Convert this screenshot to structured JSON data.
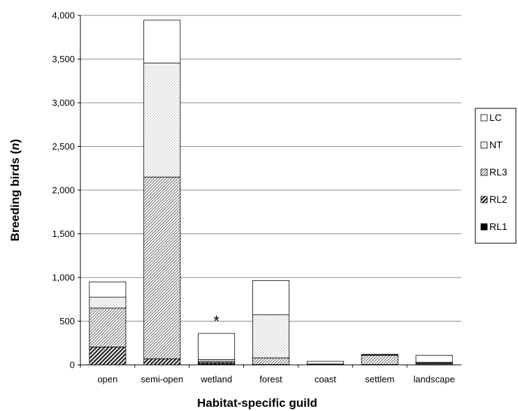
{
  "chart_data": {
    "type": "bar",
    "stacked": true,
    "title": "",
    "xlabel": "Habitat-specific guild",
    "ylabel_main": "Breeding birds (",
    "ylabel_italic": "n",
    "ylabel_end": ")",
    "ylim": [
      0,
      4000
    ],
    "yticks": [
      0,
      500,
      1000,
      1500,
      2000,
      2500,
      3000,
      3500,
      4000
    ],
    "ytick_labels": [
      "0",
      "500",
      "1,000",
      "1,500",
      "2,000",
      "2,500",
      "3,000",
      "3,500",
      "4,000"
    ],
    "categories": [
      "open",
      "semi-open",
      "wetland",
      "forest",
      "coast",
      "settlem",
      "landscape"
    ],
    "series": [
      {
        "name": "RL1",
        "pattern": "solid-black",
        "values": [
          0,
          0,
          10,
          0,
          0,
          0,
          0
        ]
      },
      {
        "name": "RL2",
        "pattern": "dense-diagonal",
        "values": [
          205,
          70,
          15,
          5,
          0,
          5,
          10
        ]
      },
      {
        "name": "RL3",
        "pattern": "light-diagonal",
        "values": [
          445,
          2080,
          15,
          75,
          5,
          105,
          10
        ]
      },
      {
        "name": "NT",
        "pattern": "dots",
        "values": [
          125,
          1305,
          20,
          495,
          5,
          5,
          10
        ]
      },
      {
        "name": "LC",
        "pattern": "white",
        "values": [
          175,
          490,
          300,
          390,
          30,
          5,
          80
        ]
      }
    ],
    "annotations": [
      {
        "category": "wetland",
        "text": "*"
      }
    ],
    "legend": {
      "position": "right",
      "order": [
        "LC",
        "NT",
        "RL3",
        "RL2",
        "RL1"
      ]
    },
    "grid": {
      "horizontal": true,
      "vertical": false
    }
  }
}
